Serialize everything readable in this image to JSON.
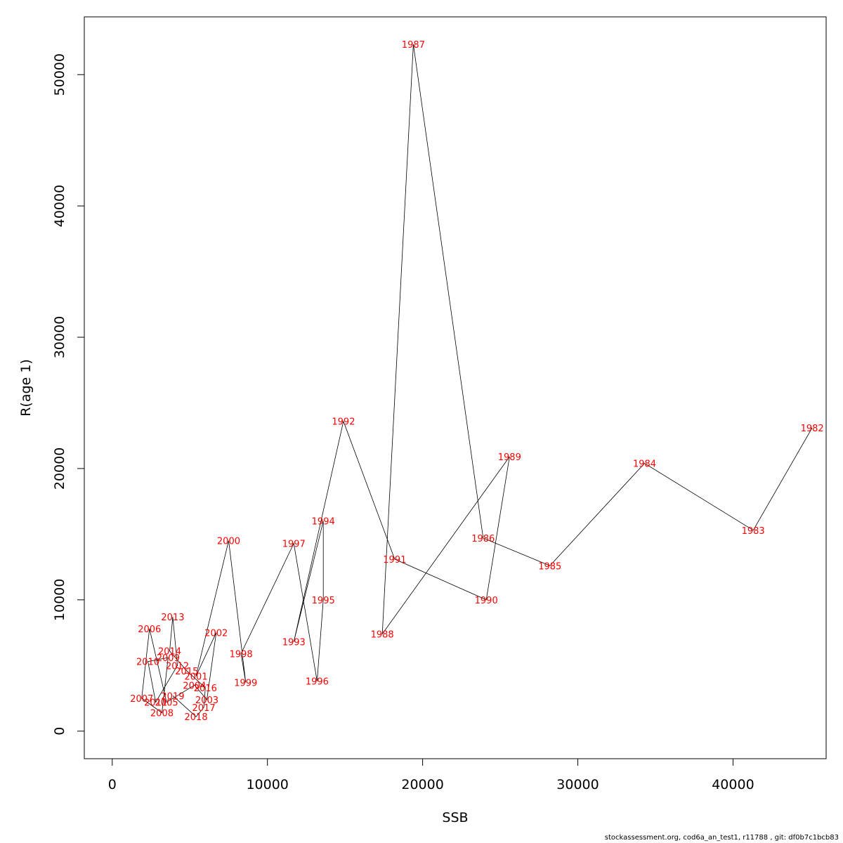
{
  "chart_data": {
    "type": "line",
    "xlabel": "SSB",
    "ylabel": "R(age 1)",
    "xlim": [
      -1800,
      46000
    ],
    "ylim": [
      -2100,
      54400
    ],
    "xticks": [
      0,
      10000,
      20000,
      30000,
      40000
    ],
    "yticks": [
      0,
      10000,
      20000,
      30000,
      40000,
      50000
    ],
    "xtick_labels": [
      "0",
      "10000",
      "20000",
      "30000",
      "40000"
    ],
    "ytick_labels": [
      "0",
      "10000",
      "20000",
      "30000",
      "40000",
      "50000"
    ],
    "grid": false,
    "legend": "none",
    "colors": {
      "line": "#000000",
      "labels": "#ff0000"
    },
    "points": [
      {
        "year": "1982",
        "ssb": 45100,
        "r": 23100
      },
      {
        "year": "1983",
        "ssb": 41300,
        "r": 15300
      },
      {
        "year": "1984",
        "ssb": 34300,
        "r": 20400
      },
      {
        "year": "1985",
        "ssb": 28200,
        "r": 12600
      },
      {
        "year": "1986",
        "ssb": 23900,
        "r": 14700
      },
      {
        "year": "1987",
        "ssb": 19400,
        "r": 52300
      },
      {
        "year": "1988",
        "ssb": 17400,
        "r": 7400
      },
      {
        "year": "1989",
        "ssb": 25600,
        "r": 20900
      },
      {
        "year": "1990",
        "ssb": 24100,
        "r": 10000
      },
      {
        "year": "1991",
        "ssb": 18200,
        "r": 13100
      },
      {
        "year": "1992",
        "ssb": 14900,
        "r": 23600
      },
      {
        "year": "1993",
        "ssb": 11700,
        "r": 6800
      },
      {
        "year": "1994",
        "ssb": 13600,
        "r": 16000
      },
      {
        "year": "1995",
        "ssb": 13600,
        "r": 10000
      },
      {
        "year": "1996",
        "ssb": 13200,
        "r": 3800
      },
      {
        "year": "1997",
        "ssb": 11700,
        "r": 14300
      },
      {
        "year": "1998",
        "ssb": 8300,
        "r": 5900
      },
      {
        "year": "1999",
        "ssb": 8600,
        "r": 3700
      },
      {
        "year": "2000",
        "ssb": 7500,
        "r": 14500
      },
      {
        "year": "2001",
        "ssb": 5400,
        "r": 4200
      },
      {
        "year": "2002",
        "ssb": 6700,
        "r": 7500
      },
      {
        "year": "2003",
        "ssb": 6100,
        "r": 2400
      },
      {
        "year": "2004",
        "ssb": 5300,
        "r": 3500
      },
      {
        "year": "2005",
        "ssb": 3500,
        "r": 2200
      },
      {
        "year": "2006",
        "ssb": 2400,
        "r": 7800
      },
      {
        "year": "2007",
        "ssb": 1900,
        "r": 2500
      },
      {
        "year": "2008",
        "ssb": 3200,
        "r": 1400
      },
      {
        "year": "2009",
        "ssb": 3600,
        "r": 5600
      },
      {
        "year": "2010",
        "ssb": 2300,
        "r": 5300
      },
      {
        "year": "2011",
        "ssb": 2800,
        "r": 2200
      },
      {
        "year": "2012",
        "ssb": 4200,
        "r": 5000
      },
      {
        "year": "2013",
        "ssb": 3900,
        "r": 8700
      },
      {
        "year": "2014",
        "ssb": 3700,
        "r": 6100
      },
      {
        "year": "2015",
        "ssb": 4800,
        "r": 4600
      },
      {
        "year": "2016",
        "ssb": 6000,
        "r": 3300
      },
      {
        "year": "2017",
        "ssb": 5900,
        "r": 1800
      },
      {
        "year": "2018",
        "ssb": 5400,
        "r": 1100
      },
      {
        "year": "2019",
        "ssb": 3900,
        "r": 2700
      }
    ]
  },
  "footer": "stockassessment.org, cod6a_an_test1, r11788 , git: df0b7c1bcb83"
}
